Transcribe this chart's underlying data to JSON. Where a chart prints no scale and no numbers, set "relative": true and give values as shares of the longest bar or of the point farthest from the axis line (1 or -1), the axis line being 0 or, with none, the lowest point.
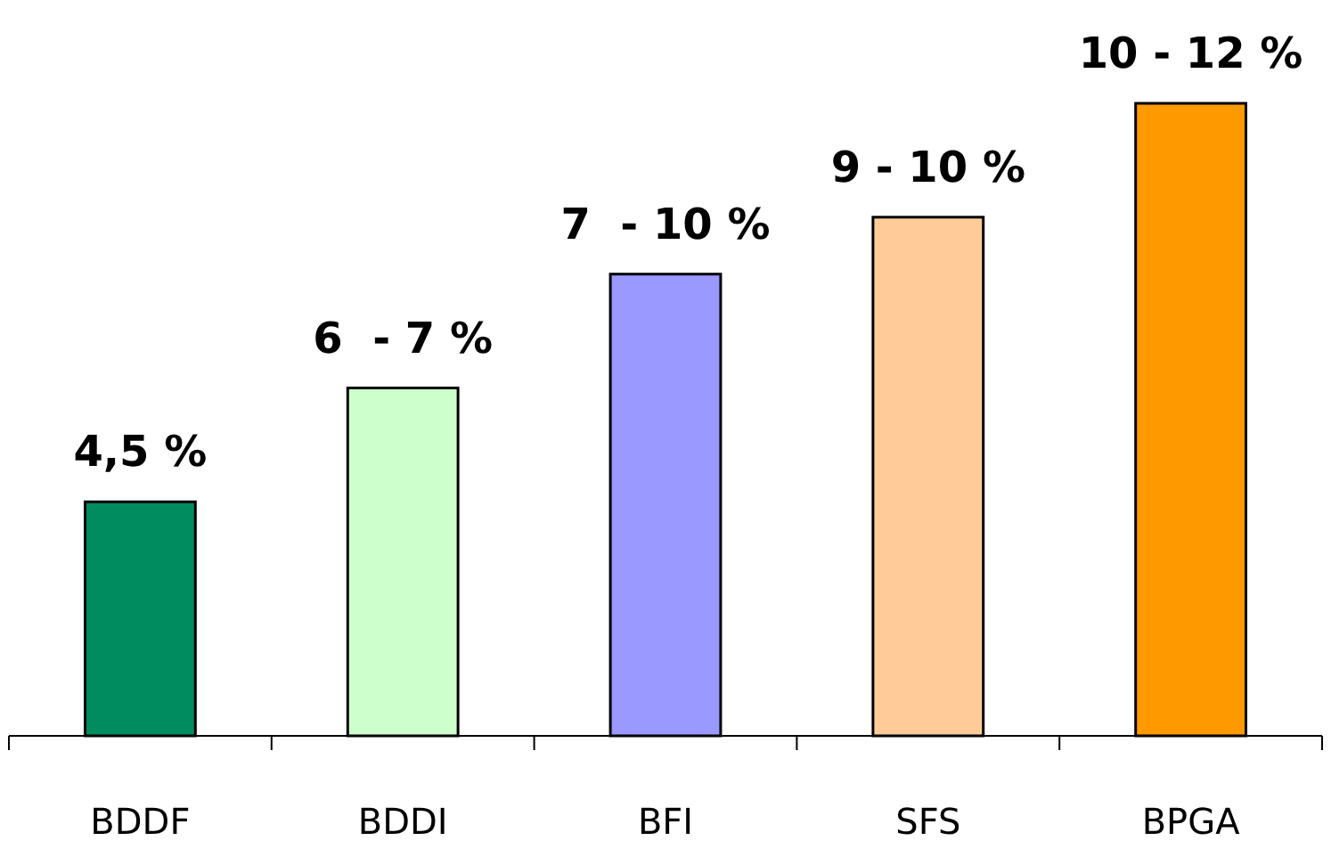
{
  "chart_data": {
    "type": "bar",
    "relative": true,
    "categories": [
      "BDDF",
      "BDDI",
      "BFI",
      "SFS",
      "BPGA"
    ],
    "values": [
      0.37,
      0.55,
      0.73,
      0.82,
      1
    ],
    "colors": [
      "#008c5f",
      "#ccffcc",
      "#9999ff",
      "#ffcc99",
      "#ff9900"
    ],
    "annotations": [
      {
        "text": "4,5 %",
        "x": "BDDF",
        "y": 0.37
      },
      {
        "text": "6  - 7 %",
        "x": "BDDI",
        "y": 0.55
      },
      {
        "text": "7  - 10 %",
        "x": "BFI",
        "y": 0.73
      },
      {
        "text": "9 - 10 %",
        "x": "SFS",
        "y": 0.82
      },
      {
        "text": "10 - 12 %",
        "x": "BPGA",
        "y": 1
      }
    ],
    "tick_labels": "x"
  }
}
